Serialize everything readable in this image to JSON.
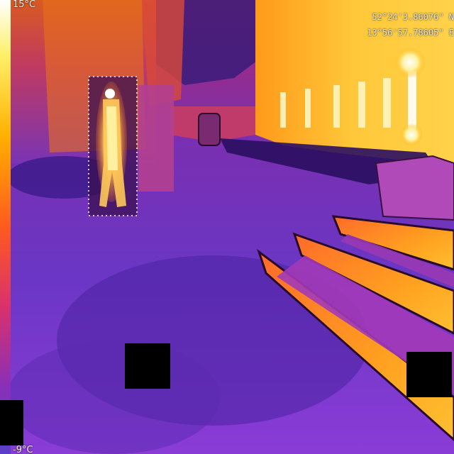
{
  "thermal_scale": {
    "max_label": "15°C",
    "min_label": "-9°C",
    "gradient_colors": [
      "#ffffff",
      "#fff06a",
      "#ffb000",
      "#ff5a1e",
      "#d8306e",
      "#8a2fb8",
      "#5a3fc8"
    ]
  },
  "gps": {
    "latitude": "52°24'3.86076\" N",
    "longitude": "13°56'57.78605\" E"
  },
  "detection": {
    "label": "person",
    "style": "dotted outline"
  },
  "redactions": {
    "count": 3,
    "color": "#000000"
  },
  "palette": {
    "background_cold": "#4a2ca8",
    "mid": "#b03cd8",
    "warm": "#ff7a1a",
    "hot": "#ffe066"
  }
}
